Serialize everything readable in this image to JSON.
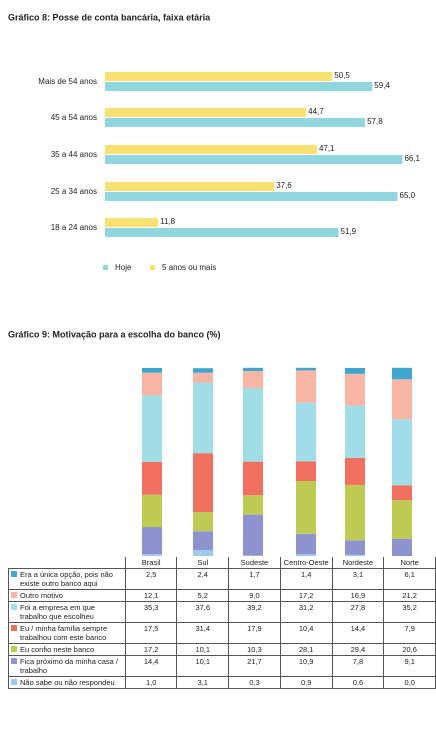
{
  "chart_data": [
    {
      "type": "hbar",
      "title": "Gráfico 8: Posse de conta bancária, faixa etária",
      "categories": [
        "Mais de 54 anos",
        "45 a 54 anos",
        "35 a 44 anos",
        "25 a 34 anos",
        "18 a 24 anos"
      ],
      "series": [
        {
          "name": "Hoje",
          "color": "#8fd6de",
          "values": [
            59.4,
            57.8,
            66.1,
            65.0,
            51.9
          ],
          "value_labels": [
            "59,4",
            "57,8",
            "66,1",
            "65,0",
            "51,9"
          ]
        },
        {
          "name": "5 anos ou mais",
          "color": "#f8e071",
          "values": [
            50.5,
            44.7,
            47.1,
            37.6,
            11.8
          ],
          "value_labels": [
            "50,5",
            "44,7",
            "47,1",
            "37,6",
            "11,8"
          ]
        }
      ],
      "legend": "bottom"
    },
    {
      "type": "stacked_bar",
      "title": "Gráfico 9: Motivação para a escolha do banco (%)",
      "categories": [
        "Brasil",
        "Sul",
        "Sudeste",
        "Centro-Oeste",
        "Nordeste",
        "Norte"
      ],
      "series": [
        {
          "name": "Era a única opção, pois não existe outro banco aqui",
          "color": "#3ea7cf",
          "values": [
            2.5,
            2.4,
            1.7,
            1.4,
            3.1,
            6.1
          ],
          "value_labels": [
            "2,5",
            "2,4",
            "1,7",
            "1,4",
            "3,1",
            "6,1"
          ]
        },
        {
          "name": "Outro motivo",
          "color": "#f8b4a4",
          "values": [
            12.1,
            5.2,
            9.0,
            17.2,
            16.9,
            21.2
          ],
          "value_labels": [
            "12,1",
            "5,2",
            "9,0",
            "17,2",
            "16,9",
            "21,2"
          ]
        },
        {
          "name": "Foi a empresa em que trabalho que escolheu",
          "color": "#a0dde6",
          "values": [
            35.3,
            37.6,
            39.2,
            31.2,
            27.8,
            35.2
          ],
          "value_labels": [
            "35,3",
            "37,6",
            "39,2",
            "31,2",
            "27,8",
            "35,2"
          ]
        },
        {
          "name": "Eu / minha família sempre trabalhou com este banco",
          "color": "#f06f5f",
          "values": [
            17.5,
            31.4,
            17.9,
            10.4,
            14.4,
            7.9
          ],
          "value_labels": [
            "17,5",
            "31,4",
            "17,9",
            "10,4",
            "14,4",
            "7,9"
          ]
        },
        {
          "name": "Eu confio neste banco",
          "color": "#bfca52",
          "values": [
            17.2,
            10.1,
            10.3,
            28.1,
            29.4,
            20.6
          ],
          "value_labels": [
            "17,2",
            "10,1",
            "10,3",
            "28,1",
            "29,4",
            "20,6"
          ]
        },
        {
          "name": "Fica próximo da minha casa / trabalho",
          "color": "#8e93cf",
          "values": [
            14.4,
            10.1,
            21.7,
            10.9,
            7.8,
            9.1
          ],
          "value_labels": [
            "14,4",
            "10,1",
            "21,7",
            "10,9",
            "7,8",
            "9,1"
          ]
        },
        {
          "name": "Não sabe ou não respondeu",
          "color": "#9ecbeb",
          "values": [
            1.0,
            3.1,
            0.3,
            0.9,
            0.6,
            0.0
          ],
          "value_labels": [
            "1,0",
            "3,1",
            "0,3",
            "0,9",
            "0,6",
            "0,0"
          ]
        }
      ]
    }
  ]
}
